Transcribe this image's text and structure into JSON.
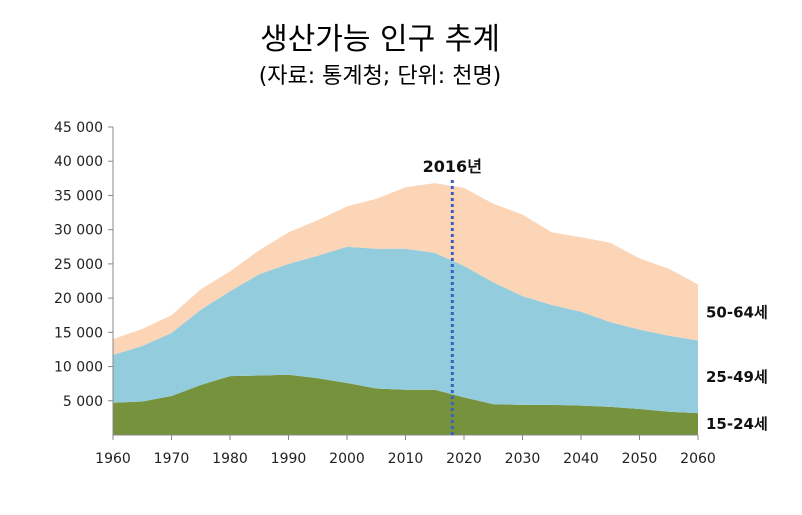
{
  "title": "생산가능 인구 추계",
  "subtitle": "(자료: 통계청; 단위: 천명)",
  "chart_data": {
    "type": "area",
    "stacked": true,
    "x": [
      1960,
      1965,
      1970,
      1975,
      1980,
      1985,
      1990,
      1995,
      2000,
      2005,
      2010,
      2015,
      2020,
      2025,
      2030,
      2035,
      2040,
      2045,
      2050,
      2055,
      2060
    ],
    "series": [
      {
        "name": "15-24세",
        "color": "#76923c",
        "values": [
          4700,
          4900,
          5700,
          7300,
          8600,
          8700,
          8800,
          8300,
          7600,
          6800,
          6600,
          6600,
          5500,
          4500,
          4400,
          4400,
          4300,
          4100,
          3800,
          3400,
          3200
        ]
      },
      {
        "name": "25-49세",
        "color": "#93cddd",
        "values": [
          7000,
          8100,
          9200,
          11000,
          12400,
          14800,
          16200,
          17900,
          19900,
          20400,
          20600,
          20000,
          19200,
          17800,
          15900,
          14600,
          13700,
          12400,
          11600,
          11100,
          10600
        ]
      },
      {
        "name": "50-64세",
        "color": "#fbd5b5",
        "values": [
          2300,
          2500,
          2600,
          3000,
          2900,
          3500,
          4600,
          5200,
          5900,
          7300,
          9000,
          10200,
          11400,
          11500,
          11900,
          10600,
          10900,
          11600,
          10400,
          9800,
          8200
        ]
      }
    ],
    "xlim": [
      1960,
      2060
    ],
    "ylim": [
      0,
      45000
    ],
    "x_ticks": [
      "1960",
      "1970",
      "1980",
      "1990",
      "2000",
      "2010",
      "2020",
      "2030",
      "2040",
      "2050",
      "2060"
    ],
    "y_ticks": [
      "5 000",
      "10 000",
      "15 000",
      "20 000",
      "25 000",
      "30 000",
      "35 000",
      "40 000",
      "45 000"
    ],
    "marker": {
      "x": 2018,
      "label": "2016년",
      "color": "#3a60c0"
    },
    "grid": false,
    "legend": "inline-right"
  }
}
